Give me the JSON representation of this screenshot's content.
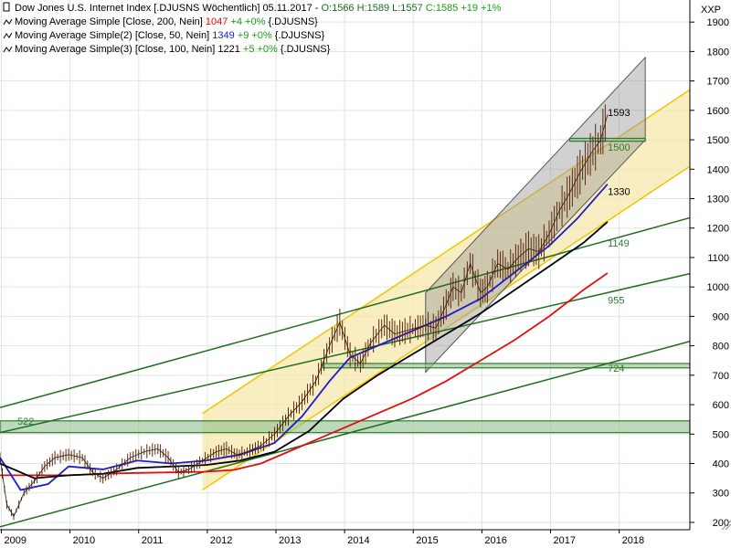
{
  "chart_data": {
    "type": "line",
    "symbol": "XXP",
    "header": {
      "title": "Dow Jones U.S. Internet Index [.DJUSNS  Wöchentlich] 05.11.2017 -",
      "ohlc_text": "O:1566 H:1589 L:1557",
      "close_text": "C:1585 +19 +1%"
    },
    "legend": [
      {
        "label": "Moving Average Simple [Close, 200, Nein]",
        "value": "1047",
        "change": "+4 +0%",
        "suffix": "{.DJUSNS}",
        "color": "#e01010"
      },
      {
        "label": "Moving Average Simple(2) [Close, 50, Nein]",
        "value": "1349",
        "change": "+9 +0%",
        "suffix": "{.DJUSNS}",
        "color": "#1a1ad0"
      },
      {
        "label": "Moving Average Simple(3) [Close, 100, Nein]",
        "value": "1221",
        "change": "+5 +0%",
        "suffix": "{.DJUSNS}",
        "color": "#000000"
      }
    ],
    "y_axis": {
      "ticks": [
        200,
        300,
        400,
        500,
        600,
        700,
        800,
        900,
        1000,
        1100,
        1200,
        1300,
        1400,
        1500,
        1600,
        1700,
        1800,
        1900
      ],
      "ylim": [
        175,
        1975
      ]
    },
    "x_axis": {
      "ticks": [
        "2009",
        "2010",
        "2011",
        "2012",
        "2013",
        "2014",
        "2015",
        "2016",
        "2017",
        "2018"
      ],
      "xlim": [
        2009.0,
        2019.05
      ]
    },
    "price": [
      [
        2009.0,
        420
      ],
      [
        2009.1,
        260
      ],
      [
        2009.2,
        220
      ],
      [
        2009.35,
        300
      ],
      [
        2009.5,
        340
      ],
      [
        2009.65,
        390
      ],
      [
        2009.8,
        420
      ],
      [
        2010.0,
        430
      ],
      [
        2010.2,
        420
      ],
      [
        2010.35,
        370
      ],
      [
        2010.5,
        350
      ],
      [
        2010.7,
        380
      ],
      [
        2010.9,
        420
      ],
      [
        2011.1,
        440
      ],
      [
        2011.3,
        450
      ],
      [
        2011.45,
        420
      ],
      [
        2011.6,
        370
      ],
      [
        2011.75,
        380
      ],
      [
        2011.95,
        410
      ],
      [
        2012.15,
        440
      ],
      [
        2012.3,
        450
      ],
      [
        2012.45,
        430
      ],
      [
        2012.6,
        440
      ],
      [
        2012.8,
        460
      ],
      [
        2013.0,
        500
      ],
      [
        2013.2,
        560
      ],
      [
        2013.4,
        610
      ],
      [
        2013.6,
        680
      ],
      [
        2013.8,
        800
      ],
      [
        2013.95,
        880
      ],
      [
        2014.1,
        770
      ],
      [
        2014.25,
        740
      ],
      [
        2014.4,
        810
      ],
      [
        2014.6,
        870
      ],
      [
        2014.75,
        840
      ],
      [
        2014.9,
        850
      ],
      [
        2015.05,
        860
      ],
      [
        2015.2,
        870
      ],
      [
        2015.35,
        860
      ],
      [
        2015.5,
        940
      ],
      [
        2015.6,
        1000
      ],
      [
        2015.72,
        980
      ],
      [
        2015.85,
        1080
      ],
      [
        2016.0,
        980
      ],
      [
        2016.1,
        1000
      ],
      [
        2016.25,
        1080
      ],
      [
        2016.4,
        1060
      ],
      [
        2016.55,
        1100
      ],
      [
        2016.7,
        1130
      ],
      [
        2016.85,
        1120
      ],
      [
        2017.0,
        1180
      ],
      [
        2017.15,
        1260
      ],
      [
        2017.3,
        1320
      ],
      [
        2017.45,
        1390
      ],
      [
        2017.6,
        1450
      ],
      [
        2017.75,
        1500
      ],
      [
        2017.85,
        1585
      ]
    ],
    "series": [
      {
        "name": "Moving Average Simple [Close, 200, Nein]",
        "color": "#e01010",
        "points": [
          [
            2009.0,
            360
          ],
          [
            2010.0,
            360
          ],
          [
            2010.5,
            365
          ],
          [
            2011.0,
            368
          ],
          [
            2011.5,
            370
          ],
          [
            2012.0,
            372
          ],
          [
            2012.4,
            378
          ],
          [
            2012.8,
            400
          ],
          [
            2013.2,
            440
          ],
          [
            2013.6,
            480
          ],
          [
            2014.0,
            520
          ],
          [
            2014.5,
            570
          ],
          [
            2015.0,
            620
          ],
          [
            2015.5,
            680
          ],
          [
            2016.0,
            750
          ],
          [
            2016.5,
            820
          ],
          [
            2017.0,
            900
          ],
          [
            2017.5,
            990
          ],
          [
            2017.85,
            1047
          ]
        ]
      },
      {
        "name": "Moving Average Simple(2) [Close, 50, Nein]",
        "color": "#1a1ad0",
        "points": [
          [
            2009.0,
            420
          ],
          [
            2009.3,
            310
          ],
          [
            2009.7,
            330
          ],
          [
            2010.0,
            390
          ],
          [
            2010.5,
            380
          ],
          [
            2011.0,
            410
          ],
          [
            2011.5,
            400
          ],
          [
            2012.0,
            410
          ],
          [
            2012.5,
            430
          ],
          [
            2013.0,
            470
          ],
          [
            2013.4,
            560
          ],
          [
            2013.8,
            680
          ],
          [
            2014.1,
            760
          ],
          [
            2014.5,
            800
          ],
          [
            2015.0,
            850
          ],
          [
            2015.5,
            900
          ],
          [
            2016.0,
            960
          ],
          [
            2016.5,
            1050
          ],
          [
            2017.0,
            1140
          ],
          [
            2017.4,
            1230
          ],
          [
            2017.85,
            1349
          ]
        ]
      },
      {
        "name": "Moving Average Simple(3) [Close, 100, Nein]",
        "color": "#000000",
        "points": [
          [
            2009.0,
            400
          ],
          [
            2009.5,
            350
          ],
          [
            2010.0,
            360
          ],
          [
            2010.5,
            365
          ],
          [
            2011.0,
            385
          ],
          [
            2011.5,
            390
          ],
          [
            2012.0,
            395
          ],
          [
            2012.5,
            410
          ],
          [
            2013.0,
            440
          ],
          [
            2013.5,
            510
          ],
          [
            2014.0,
            620
          ],
          [
            2014.5,
            700
          ],
          [
            2015.0,
            770
          ],
          [
            2015.5,
            840
          ],
          [
            2016.0,
            910
          ],
          [
            2016.5,
            990
          ],
          [
            2017.0,
            1070
          ],
          [
            2017.5,
            1150
          ],
          [
            2017.85,
            1221
          ]
        ]
      }
    ],
    "channels": {
      "green_lines": [
        [
          [
            2009.0,
            590
          ],
          [
            2019.05,
            1235
          ]
        ],
        [
          [
            2009.0,
            505
          ],
          [
            2019.05,
            1045
          ]
        ],
        [
          [
            2009.0,
            185
          ],
          [
            2019.05,
            815
          ]
        ]
      ],
      "yellow_band": {
        "top": [
          [
            2011.95,
            570
          ],
          [
            2019.05,
            1670
          ]
        ],
        "bottom": [
          [
            2011.95,
            310
          ],
          [
            2019.05,
            1410
          ]
        ]
      },
      "grey_channel": {
        "top": [
          [
            2015.2,
            980
          ],
          [
            2018.4,
            1780
          ]
        ],
        "bottom": [
          [
            2015.2,
            710
          ],
          [
            2018.4,
            1500
          ]
        ]
      },
      "green_bands": [
        {
          "y1": 505,
          "y2": 545,
          "x1": 2009.0,
          "x2": 2019.05
        },
        {
          "y1": 725,
          "y2": 740,
          "x1": 2013.7,
          "x2": 2019.05
        },
        {
          "y1": 1495,
          "y2": 1505,
          "x1": 2017.3,
          "x2": 2018.4
        }
      ]
    },
    "annotations": [
      {
        "text": "522",
        "x": 2009.2,
        "y": 545,
        "color": "#2e7d2e"
      },
      {
        "text": "955",
        "x": 2017.8,
        "y": 955,
        "color": "#2e7d2e"
      },
      {
        "text": "724",
        "x": 2017.8,
        "y": 724,
        "color": "#2e7d2e"
      },
      {
        "text": "1149",
        "x": 2017.8,
        "y": 1149,
        "color": "#2e7d2e"
      },
      {
        "text": "1330",
        "x": 2017.8,
        "y": 1325,
        "color": "#000000"
      },
      {
        "text": "1593",
        "x": 2017.8,
        "y": 1593,
        "color": "#000000"
      },
      {
        "text": "1500",
        "x": 2017.8,
        "y": 1475,
        "color": "#2e7d2e"
      }
    ]
  }
}
